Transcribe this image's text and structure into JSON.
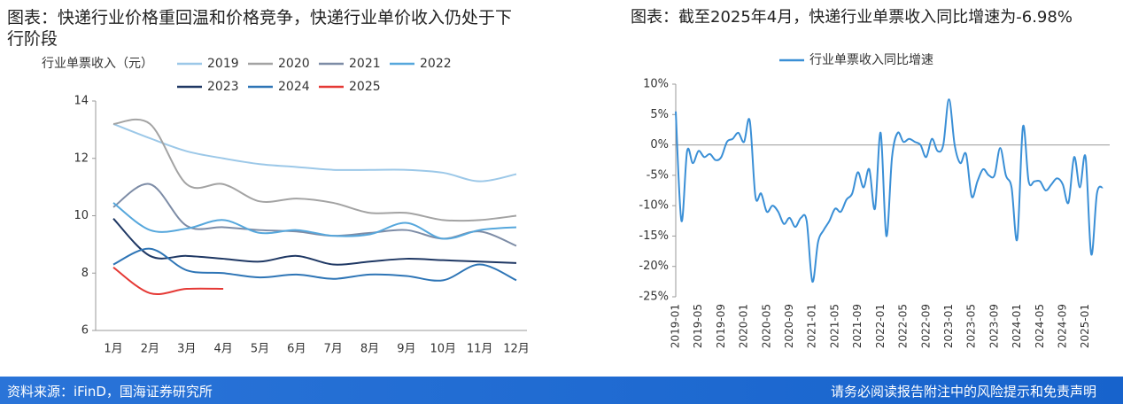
{
  "chart_data": [
    {
      "type": "line",
      "title": "图表：快递行业价格重回温和价格竞争，快递行业单价收入仍处于下行阶段",
      "ylabel": "行业单票收入（元）",
      "categories": [
        "1月",
        "2月",
        "3月",
        "4月",
        "5月",
        "6月",
        "7月",
        "8月",
        "9月",
        "10月",
        "11月",
        "12月"
      ],
      "series": [
        {
          "name": "2019",
          "color": "#9cc8e8",
          "values": [
            13.2,
            12.7,
            12.25,
            12.0,
            11.8,
            11.7,
            11.6,
            11.6,
            11.6,
            11.5,
            11.2,
            11.45
          ]
        },
        {
          "name": "2020",
          "color": "#a3a3a3",
          "values": [
            13.2,
            13.2,
            11.1,
            11.1,
            10.5,
            10.6,
            10.45,
            10.1,
            10.1,
            9.85,
            9.85,
            10.0
          ]
        },
        {
          "name": "2021",
          "color": "#7d8ca6",
          "values": [
            10.3,
            11.1,
            9.65,
            9.6,
            9.5,
            9.45,
            9.3,
            9.4,
            9.5,
            9.2,
            9.45,
            8.95
          ]
        },
        {
          "name": "2022",
          "color": "#56a7dc",
          "values": [
            10.45,
            9.5,
            9.55,
            9.85,
            9.4,
            9.5,
            9.3,
            9.35,
            9.75,
            9.2,
            9.5,
            9.6
          ]
        },
        {
          "name": "2023",
          "color": "#1f3864",
          "values": [
            9.9,
            8.6,
            8.6,
            8.5,
            8.4,
            8.6,
            8.3,
            8.4,
            8.5,
            8.45,
            8.4,
            8.35
          ]
        },
        {
          "name": "2024",
          "color": "#2e75b6",
          "values": [
            8.3,
            8.85,
            8.1,
            8.0,
            7.85,
            7.95,
            7.8,
            7.95,
            7.9,
            7.75,
            8.3,
            7.75
          ]
        },
        {
          "name": "2025",
          "color": "#e53935",
          "values": [
            8.2,
            7.3,
            7.45,
            7.45,
            null,
            null,
            null,
            null,
            null,
            null,
            null,
            null
          ]
        }
      ],
      "ylim": [
        6,
        14
      ],
      "yticks": [
        6,
        8,
        10,
        12,
        14
      ],
      "smooth": true
    },
    {
      "type": "line",
      "title": "图表：截至2025年4月，快递行业单票收入同比增速为-6.98%",
      "categories": [
        "2019-01",
        null,
        null,
        null,
        "2019-05",
        null,
        null,
        null,
        "2019-09",
        null,
        null,
        null,
        "2020-01",
        null,
        null,
        null,
        "2020-05",
        null,
        null,
        null,
        "2020-09",
        null,
        null,
        null,
        "2021-01",
        null,
        null,
        null,
        "2021-05",
        null,
        null,
        null,
        "2021-09",
        null,
        null,
        null,
        "2022-01",
        null,
        null,
        null,
        "2022-05",
        null,
        null,
        null,
        "2022-09",
        null,
        null,
        null,
        "2023-01",
        null,
        null,
        null,
        "2023-05",
        null,
        null,
        null,
        "2023-09",
        null,
        null,
        null,
        "2024-01",
        null,
        null,
        null,
        "2024-05",
        null,
        null,
        null,
        "2024-09",
        null,
        null,
        null,
        "2025-01",
        null,
        null,
        null
      ],
      "series": [
        {
          "name": "行业单票收入同比增速",
          "color": "#3a8fd6",
          "values": [
            5.5,
            -12.5,
            -1,
            -3,
            -1,
            -2,
            -1.5,
            -2.5,
            -2,
            0.5,
            1,
            2,
            0.5,
            4,
            -8.5,
            -8,
            -11,
            -10,
            -11,
            -13,
            -12,
            -13.5,
            -12,
            -12.5,
            -22.5,
            -16,
            -14,
            -12.5,
            -10.5,
            -11,
            -9,
            -8,
            -4.5,
            -7,
            -4,
            -10.5,
            2,
            -15,
            -2,
            2,
            0.5,
            1,
            0.5,
            0,
            -2,
            1,
            -1,
            0,
            7.5,
            0,
            -3,
            -1.5,
            -8.5,
            -6,
            -4,
            -5,
            -5,
            -0.5,
            -5,
            -7,
            -15.5,
            3,
            -6,
            -6,
            -6,
            -7.5,
            -6.5,
            -5.5,
            -6.5,
            -9.5,
            -2,
            -7,
            -2,
            -18,
            -8,
            -6.98
          ]
        }
      ],
      "ylim": [
        -25,
        10
      ],
      "yticks": [
        {
          "value": 10,
          "label": "10%"
        },
        {
          "value": 5,
          "label": "5%"
        },
        {
          "value": 0,
          "label": "0%"
        },
        {
          "value": -5,
          "label": "-5%"
        },
        {
          "value": -10,
          "label": "-10%"
        },
        {
          "value": -15,
          "label": "-15%"
        },
        {
          "value": -20,
          "label": "-20%"
        },
        {
          "value": -25,
          "label": "-25%"
        }
      ],
      "smooth": true
    }
  ],
  "footer": {
    "source": "资料来源：iFinD，国海证券研究所",
    "disclaimer": "请务必阅读报告附注中的风险提示和免责声明"
  }
}
